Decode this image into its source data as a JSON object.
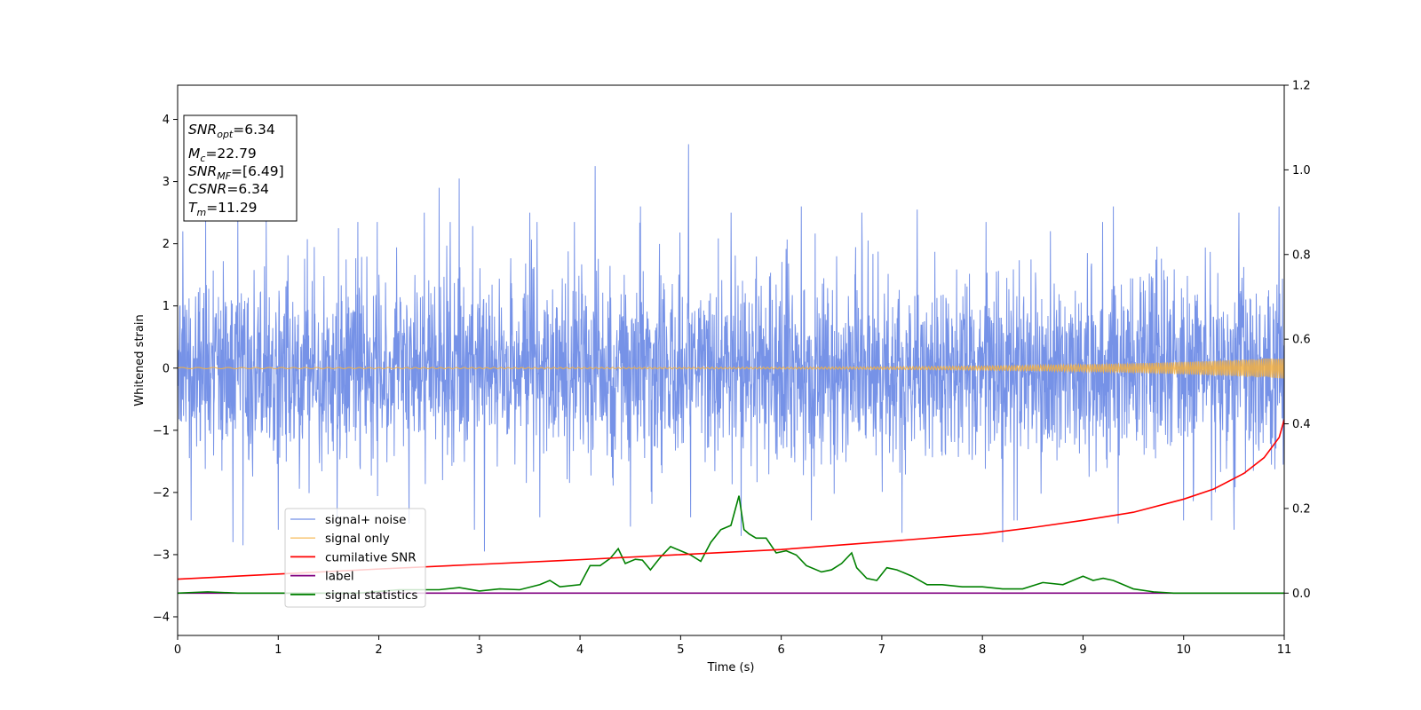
{
  "chart_data": {
    "type": "line",
    "xlabel": "Time (s)",
    "ylabel": "Whitened strain",
    "xlim": [
      0,
      11
    ],
    "ylim": [
      -4.3,
      4.55
    ],
    "y2lim": [
      -0.1,
      1.2
    ],
    "x_ticks": [
      "0",
      "1",
      "2",
      "3",
      "4",
      "5",
      "6",
      "7",
      "8",
      "9",
      "10",
      "11"
    ],
    "y_ticks": [
      "−4",
      "−3",
      "−2",
      "−1",
      "0",
      "1",
      "2",
      "3",
      "4"
    ],
    "y2_ticks": [
      "0.0",
      "0.2",
      "0.4",
      "0.6",
      "0.8",
      "1.0",
      "1.2"
    ],
    "grid": false,
    "legend_position": "lower-left",
    "info_box": {
      "snr_opt_main": "SNR",
      "snr_opt_sub": "opt",
      "snr_opt_value": "=6.34",
      "mc_main": "M",
      "mc_sub": "c",
      "mc_value": "=22.79",
      "snr_mf_main": "SNR",
      "snr_mf_sub": "MF",
      "snr_mf_value": "=[6.49]",
      "csnr_main": "CSNR",
      "csnr_value": "=6.34",
      "tm_main": "T",
      "tm_sub": "m",
      "tm_value": "=11.29"
    },
    "series": [
      {
        "name": "signal+ noise",
        "color": "#6f8ce6",
        "axis": "left",
        "amplitude_typical": 1.3,
        "spikes": [
          {
            "x": 0.05,
            "y": 2.2
          },
          {
            "x": 0.28,
            "y": 2.4
          },
          {
            "x": 0.6,
            "y": 2.45
          },
          {
            "x": 0.88,
            "y": 2.4
          },
          {
            "x": 1.6,
            "y": 2.25
          },
          {
            "x": 2.45,
            "y": 2.5
          },
          {
            "x": 2.6,
            "y": 2.9
          },
          {
            "x": 2.8,
            "y": 3.05
          },
          {
            "x": 3.5,
            "y": 2.5
          },
          {
            "x": 4.15,
            "y": 3.25
          },
          {
            "x": 4.6,
            "y": 2.6
          },
          {
            "x": 5.08,
            "y": 3.6
          },
          {
            "x": 5.5,
            "y": 2.5
          },
          {
            "x": 6.2,
            "y": 2.6
          },
          {
            "x": 6.8,
            "y": 2.5
          },
          {
            "x": 7.35,
            "y": 2.55
          },
          {
            "x": 8.2,
            "y": 2.55
          },
          {
            "x": 9.3,
            "y": 2.6
          },
          {
            "x": 10.55,
            "y": 2.5
          },
          {
            "x": 10.95,
            "y": 2.6
          },
          {
            "x": 0.55,
            "y": -2.8
          },
          {
            "x": 0.65,
            "y": -2.85
          },
          {
            "x": 1.0,
            "y": -2.6
          },
          {
            "x": 2.3,
            "y": -2.5
          },
          {
            "x": 2.95,
            "y": -2.6
          },
          {
            "x": 3.05,
            "y": -2.95
          },
          {
            "x": 3.6,
            "y": -2.4
          },
          {
            "x": 4.5,
            "y": -2.55
          },
          {
            "x": 5.1,
            "y": -2.4
          },
          {
            "x": 5.6,
            "y": -2.7
          },
          {
            "x": 6.3,
            "y": -2.45
          },
          {
            "x": 7.2,
            "y": -2.65
          },
          {
            "x": 8.2,
            "y": -2.8
          },
          {
            "x": 9.35,
            "y": -2.5
          },
          {
            "x": 10.5,
            "y": -2.6
          }
        ]
      },
      {
        "name": "signal only",
        "color": "#f5b041",
        "axis": "left",
        "amplitude_start": 0.01,
        "amplitude_end": 0.17
      },
      {
        "name": "cumilative SNR",
        "color": "#ff0000",
        "axis": "right",
        "x": [
          0,
          1,
          2,
          3,
          4,
          5,
          6,
          7,
          8,
          8.5,
          9,
          9.5,
          10,
          10.3,
          10.6,
          10.8,
          10.95,
          11
        ],
        "y": [
          0.033,
          0.045,
          0.057,
          0.068,
          0.079,
          0.091,
          0.103,
          0.121,
          0.14,
          0.155,
          0.172,
          0.191,
          0.222,
          0.246,
          0.283,
          0.32,
          0.368,
          0.41
        ]
      },
      {
        "name": "label",
        "color": "#800080",
        "axis": "right",
        "x": [
          0,
          11
        ],
        "y": [
          0,
          0
        ]
      },
      {
        "name": "signal statistics",
        "color": "#008000",
        "axis": "right",
        "x": [
          0,
          0.3,
          0.6,
          1.0,
          1.4,
          1.8,
          2.2,
          2.6,
          2.8,
          3.0,
          3.2,
          3.4,
          3.6,
          3.7,
          3.8,
          4.0,
          4.1,
          4.2,
          4.3,
          4.38,
          4.45,
          4.55,
          4.62,
          4.7,
          4.8,
          4.9,
          5.0,
          5.1,
          5.2,
          5.3,
          5.4,
          5.5,
          5.58,
          5.63,
          5.68,
          5.75,
          5.85,
          5.95,
          6.05,
          6.15,
          6.25,
          6.4,
          6.5,
          6.6,
          6.7,
          6.75,
          6.85,
          6.95,
          7.05,
          7.15,
          7.3,
          7.45,
          7.6,
          7.8,
          8.0,
          8.2,
          8.4,
          8.6,
          8.8,
          9.0,
          9.1,
          9.2,
          9.3,
          9.5,
          9.7,
          9.9,
          10.2,
          10.6,
          11
        ],
        "y": [
          0.0,
          0.003,
          0.0,
          0.0,
          0.0,
          0.0,
          0.008,
          0.008,
          0.013,
          0.005,
          0.01,
          0.008,
          0.02,
          0.03,
          0.015,
          0.02,
          0.065,
          0.065,
          0.082,
          0.105,
          0.07,
          0.08,
          0.078,
          0.055,
          0.085,
          0.11,
          0.1,
          0.09,
          0.075,
          0.12,
          0.15,
          0.16,
          0.23,
          0.15,
          0.14,
          0.13,
          0.13,
          0.095,
          0.1,
          0.09,
          0.065,
          0.05,
          0.055,
          0.07,
          0.095,
          0.06,
          0.035,
          0.03,
          0.06,
          0.055,
          0.04,
          0.02,
          0.02,
          0.015,
          0.015,
          0.01,
          0.01,
          0.025,
          0.02,
          0.04,
          0.03,
          0.035,
          0.03,
          0.01,
          0.003,
          0.0,
          0.0,
          0.0,
          0.0
        ]
      }
    ]
  }
}
